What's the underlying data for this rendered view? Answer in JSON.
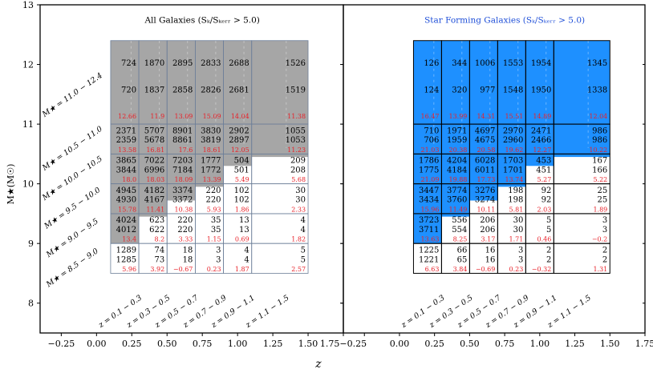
{
  "chart_data": {
    "type": "table",
    "xlabel": "z",
    "ylabel": "M★(M☉)",
    "xlim": [
      -0.4,
      1.75
    ],
    "ylim": [
      7.5,
      13
    ],
    "x_ticks": [
      "−0.25",
      "0.00",
      "0.25",
      "0.50",
      "0.75",
      "1.00",
      "1.25",
      "1.50",
      "1.75"
    ],
    "y_ticks": [
      "8",
      "9",
      "10",
      "11",
      "12",
      "13"
    ],
    "z_bins": [
      [
        0.1,
        0.3
      ],
      [
        0.3,
        0.5
      ],
      [
        0.5,
        0.7
      ],
      [
        0.7,
        0.9
      ],
      [
        0.9,
        1.1
      ],
      [
        1.1,
        1.5
      ]
    ],
    "mass_bins": [
      [
        8.5,
        9.0
      ],
      [
        9.0,
        9.5
      ],
      [
        9.5,
        10.0
      ],
      [
        10.0,
        10.5
      ],
      [
        10.5,
        11.0
      ],
      [
        11.0,
        12.4
      ]
    ],
    "z_labels": [
      "z = 0.1 − 0.3",
      "z = 0.3 − 0.5",
      "z = 0.5 − 0.7",
      "z = 0.7 − 0.9",
      "z = 0.9 − 1.1",
      "z = 1.1 − 1.5"
    ],
    "mass_labels": [
      "M★ = 8.5 − 9.0",
      "M★ = 9.0 − 9.5",
      "M★ = 9.5 − 10.0",
      "M★ = 10.0 − 10.5",
      "M★ = 10.5 − 11.0",
      "M★ = 11.0 − 12.4"
    ],
    "panels": [
      {
        "title": "All Galaxies (Sₖ/Sₖₑᵣᵣ > 5.0)",
        "title_color": "#000000",
        "fill_color": "#a6a6a6",
        "cells": [
          [
            [
              1289,
              1285,
              "5.96"
            ],
            [
              74,
              73,
              "3.92"
            ],
            [
              18,
              18,
              "−0.67"
            ],
            [
              3,
              3,
              "0.23"
            ],
            [
              4,
              4,
              "1.87"
            ],
            [
              5,
              5,
              "2.57"
            ]
          ],
          [
            [
              4024,
              4012,
              "13.4"
            ],
            [
              623,
              622,
              "8.2"
            ],
            [
              220,
              220,
              "3.33"
            ],
            [
              35,
              35,
              "1.15"
            ],
            [
              13,
              13,
              "0.69"
            ],
            [
              4,
              4,
              "1.82"
            ]
          ],
          [
            [
              4945,
              4930,
              "15.78"
            ],
            [
              4182,
              4167,
              "11.41"
            ],
            [
              3374,
              3372,
              "10.38"
            ],
            [
              220,
              220,
              "5.93"
            ],
            [
              102,
              102,
              "1.86"
            ],
            [
              30,
              30,
              "2.33"
            ]
          ],
          [
            [
              3865,
              3844,
              "18.0"
            ],
            [
              7022,
              6996,
              "18.03"
            ],
            [
              7203,
              7184,
              "18.09"
            ],
            [
              1777,
              1772,
              "13.39"
            ],
            [
              504,
              501,
              "5.49"
            ],
            [
              209,
              208,
              "5.68"
            ]
          ],
          [
            [
              2371,
              2359,
              "13.58"
            ],
            [
              5707,
              5678,
              "16.81"
            ],
            [
              8901,
              8861,
              "17.6"
            ],
            [
              3830,
              3819,
              "18.61"
            ],
            [
              2902,
              2897,
              "12.05"
            ],
            [
              1055,
              1053,
              "11.23"
            ]
          ],
          [
            [
              724,
              720,
              "12.66"
            ],
            [
              1870,
              1837,
              "11.9"
            ],
            [
              2895,
              2858,
              "13.09"
            ],
            [
              2833,
              2826,
              "15.09"
            ],
            [
              2688,
              2681,
              "14.04"
            ],
            [
              1526,
              1519,
              "11.38"
            ]
          ]
        ]
      },
      {
        "title": "Star Forming Galaxies (Sₖ/Sₖₑᵣᵣ > 5.0)",
        "title_color": "#1f4fd8",
        "fill_color": "#1e90ff",
        "cells": [
          [
            [
              1225,
              1221,
              "6.63"
            ],
            [
              66,
              65,
              "3.84"
            ],
            [
              16,
              16,
              "−0.69"
            ],
            [
              3,
              3,
              "0.23"
            ],
            [
              2,
              2,
              "−0.32"
            ],
            [
              2,
              2,
              "1.31"
            ]
          ],
          [
            [
              3723,
              3711,
              "13.63"
            ],
            [
              556,
              554,
              "8.25"
            ],
            [
              206,
              206,
              "3.17"
            ],
            [
              30,
              30,
              "1.71"
            ],
            [
              5,
              5,
              "0.46"
            ],
            [
              3,
              3,
              "−0.2"
            ]
          ],
          [
            [
              3447,
              3434,
              "15.96"
            ],
            [
              3774,
              3760,
              "11.49"
            ],
            [
              3276,
              3274,
              "10.11"
            ],
            [
              198,
              198,
              "5.81"
            ],
            [
              92,
              92,
              "2.03"
            ],
            [
              25,
              25,
              "1.89"
            ]
          ],
          [
            [
              1786,
              1775,
              "21.09"
            ],
            [
              4204,
              4184,
              "19.88"
            ],
            [
              6028,
              6011,
              "17.73"
            ],
            [
              1703,
              1701,
              "13.74"
            ],
            [
              453,
              451,
              "5.27"
            ],
            [
              167,
              166,
              "5.22"
            ]
          ],
          [
            [
              710,
              706,
              "21.03"
            ],
            [
              1971,
              1959,
              "20.38"
            ],
            [
              4697,
              4675,
              "20.58"
            ],
            [
              2970,
              2960,
              "19.62"
            ],
            [
              2471,
              2466,
              "12.27"
            ],
            [
              986,
              986,
              "10.22"
            ]
          ],
          [
            [
              126,
              124,
              "16.47"
            ],
            [
              344,
              320,
              "13.99"
            ],
            [
              1006,
              977,
              "14.31"
            ],
            [
              1553,
              1548,
              "15.51"
            ],
            [
              1954,
              1950,
              "14.89"
            ],
            [
              1345,
              1338,
              "12.04"
            ]
          ]
        ]
      }
    ]
  }
}
